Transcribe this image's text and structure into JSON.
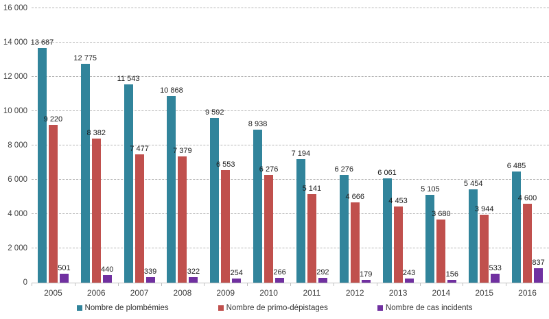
{
  "chart_data": {
    "type": "bar",
    "title": "",
    "categories": [
      "2005",
      "2006",
      "2007",
      "2008",
      "2009",
      "2010",
      "2011",
      "2012",
      "2013",
      "2014",
      "2015",
      "2016"
    ],
    "series": [
      {
        "name": "Nombre de plombémies",
        "color": "#31849B",
        "values": [
          13687,
          12775,
          11543,
          10868,
          9592,
          8938,
          7194,
          6276,
          6061,
          5105,
          5454,
          6485
        ]
      },
      {
        "name": "Nombre de primo-dépistages",
        "color": "#C0504D",
        "values": [
          9220,
          8382,
          7477,
          7379,
          6553,
          6276,
          5141,
          4666,
          4453,
          3680,
          3944,
          4600
        ]
      },
      {
        "name": "Nombre de cas incidents",
        "color": "#7030A0",
        "values": [
          501,
          440,
          339,
          322,
          254,
          266,
          292,
          179,
          243,
          156,
          533,
          837
        ]
      }
    ],
    "xlabel": "",
    "ylabel": "",
    "ylim": [
      0,
      16000
    ],
    "ytick_step": 2000,
    "ytick_labels": [
      "0",
      "2 000",
      "4 000",
      "6 000",
      "8 000",
      "10 000",
      "12 000",
      "14 000",
      "16 000"
    ],
    "grid": true,
    "gridline_style": "dashed",
    "legend_position": "bottom",
    "number_format": "space-thousands",
    "data_labels": true
  }
}
